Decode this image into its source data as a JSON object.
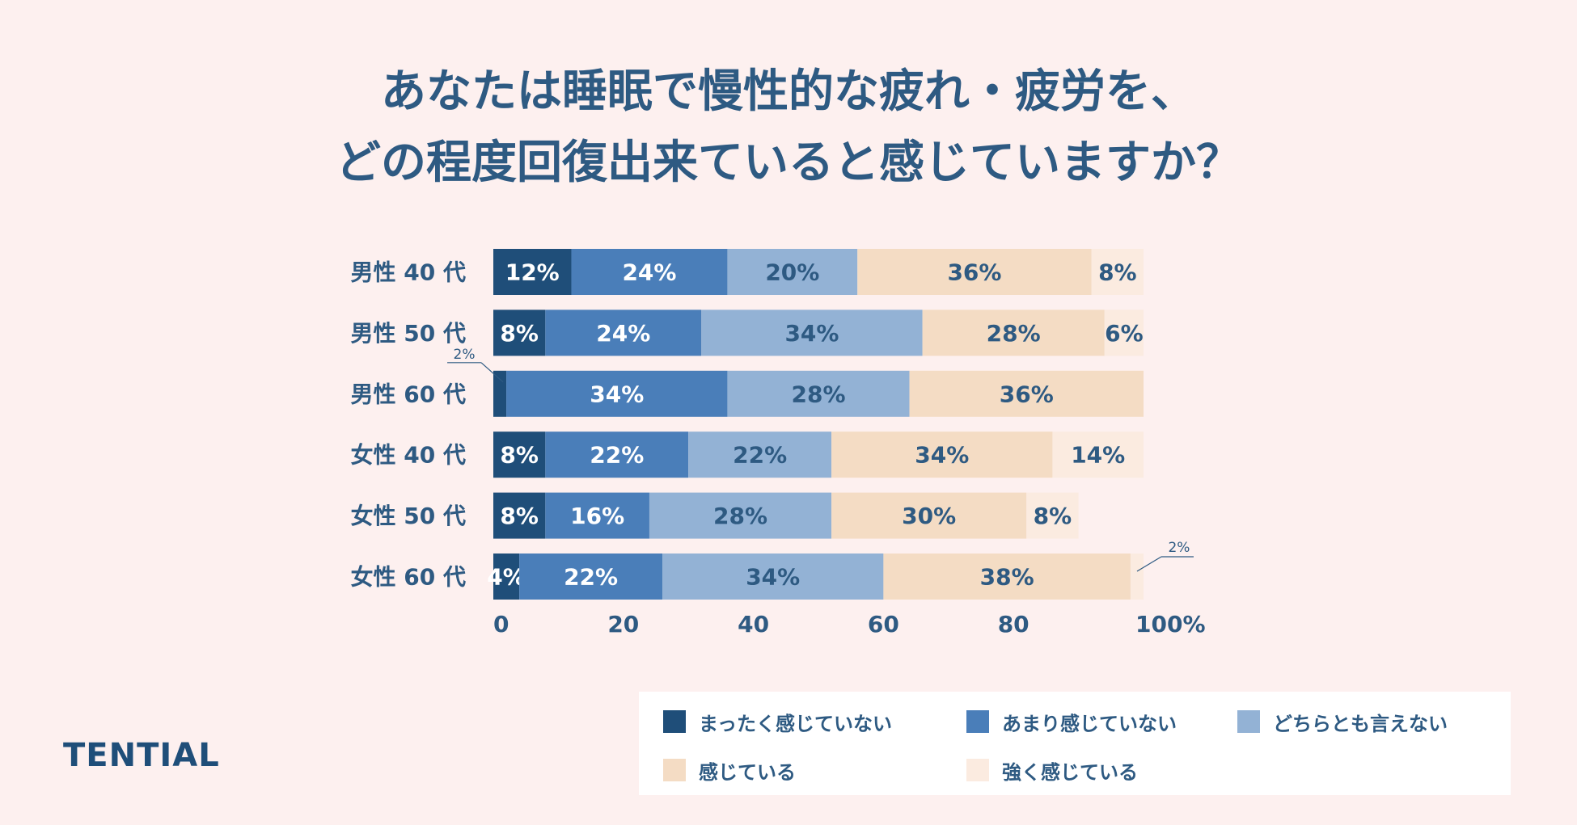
{
  "title_lines": [
    "あなたは睡眠で慢性的な疲れ・疲労を、",
    "どの程度回復出来ていると感じていますか？"
  ],
  "brand": "TENTIAL",
  "colors": {
    "background": "#fdf0ef",
    "text": "#2e5a82",
    "series": [
      "#1f4e79",
      "#4a7eb9",
      "#93b2d5",
      "#f4dcc4",
      "#fbebe0"
    ]
  },
  "chart_data": {
    "type": "bar",
    "orientation": "horizontal",
    "stacked": true,
    "categories": [
      "男性 40 代",
      "男性 50 代",
      "男性 60 代",
      "女性 40 代",
      "女性 50 代",
      "女性 60 代"
    ],
    "series": [
      {
        "name": "まったく感じていない",
        "values": [
          12,
          8,
          2,
          8,
          8,
          4
        ]
      },
      {
        "name": "あまり感じていない",
        "values": [
          24,
          24,
          34,
          22,
          16,
          22
        ]
      },
      {
        "name": "どちらとも言えない",
        "values": [
          20,
          34,
          28,
          22,
          28,
          34
        ]
      },
      {
        "name": "感じている",
        "values": [
          36,
          28,
          36,
          34,
          30,
          38
        ]
      },
      {
        "name": "強く感じている",
        "values": [
          8,
          6,
          0,
          14,
          8,
          2
        ]
      }
    ],
    "x_ticks": [
      "0",
      "20",
      "40",
      "60",
      "80",
      "100%"
    ],
    "xlim": [
      0,
      100
    ],
    "legend_position": "bottom-right",
    "callout_label": "2%"
  }
}
